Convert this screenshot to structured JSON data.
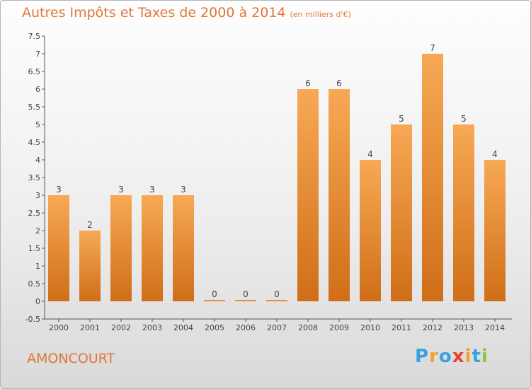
{
  "chart_data": {
    "type": "bar",
    "title": "Autres Impôts et Taxes de 2000 à 2014",
    "unit_note": "(en milliers d'€)",
    "categories": [
      "2000",
      "2001",
      "2002",
      "2003",
      "2004",
      "2005",
      "2006",
      "2007",
      "2008",
      "2009",
      "2010",
      "2011",
      "2012",
      "2013",
      "2014"
    ],
    "values": [
      3,
      2,
      3,
      3,
      3,
      0,
      0,
      0,
      6,
      6,
      4,
      5,
      7,
      5,
      4
    ],
    "data_labels": [
      "3",
      "2",
      "3",
      "3",
      "3",
      "0",
      "0",
      "0",
      "6",
      "6",
      "4",
      "5",
      "7",
      "5",
      "4"
    ],
    "ylim": [
      -0.5,
      7.5
    ],
    "yticks": [
      "-0.5",
      "0",
      "0.5",
      "1",
      "1.5",
      "2",
      "2.5",
      "3",
      "3.5",
      "4",
      "4.5",
      "5",
      "5.5",
      "6",
      "6.5",
      "7",
      "7.5"
    ],
    "ytick_values": [
      -0.5,
      0,
      0.5,
      1,
      1.5,
      2,
      2.5,
      3,
      3.5,
      4,
      4.5,
      5,
      5.5,
      6,
      6.5,
      7,
      7.5
    ],
    "grid": false,
    "colors": {
      "bar_light": "#f7a955",
      "bar_dark": "#d06e18",
      "title": "#e0763a"
    }
  },
  "footer": {
    "commune": "AMONCOURT"
  },
  "logo": {
    "text": "Proxiti",
    "letters": [
      {
        "ch": "P",
        "color": "#3aa0de"
      },
      {
        "ch": "r",
        "color": "#f0a030"
      },
      {
        "ch": "o",
        "color": "#3aa0de"
      },
      {
        "ch": "x",
        "color": "#e8412d"
      },
      {
        "ch": "i",
        "color": "#f0a030"
      },
      {
        "ch": "t",
        "color": "#3aa0de"
      },
      {
        "ch": "i",
        "color": "#8cc63f"
      }
    ]
  }
}
